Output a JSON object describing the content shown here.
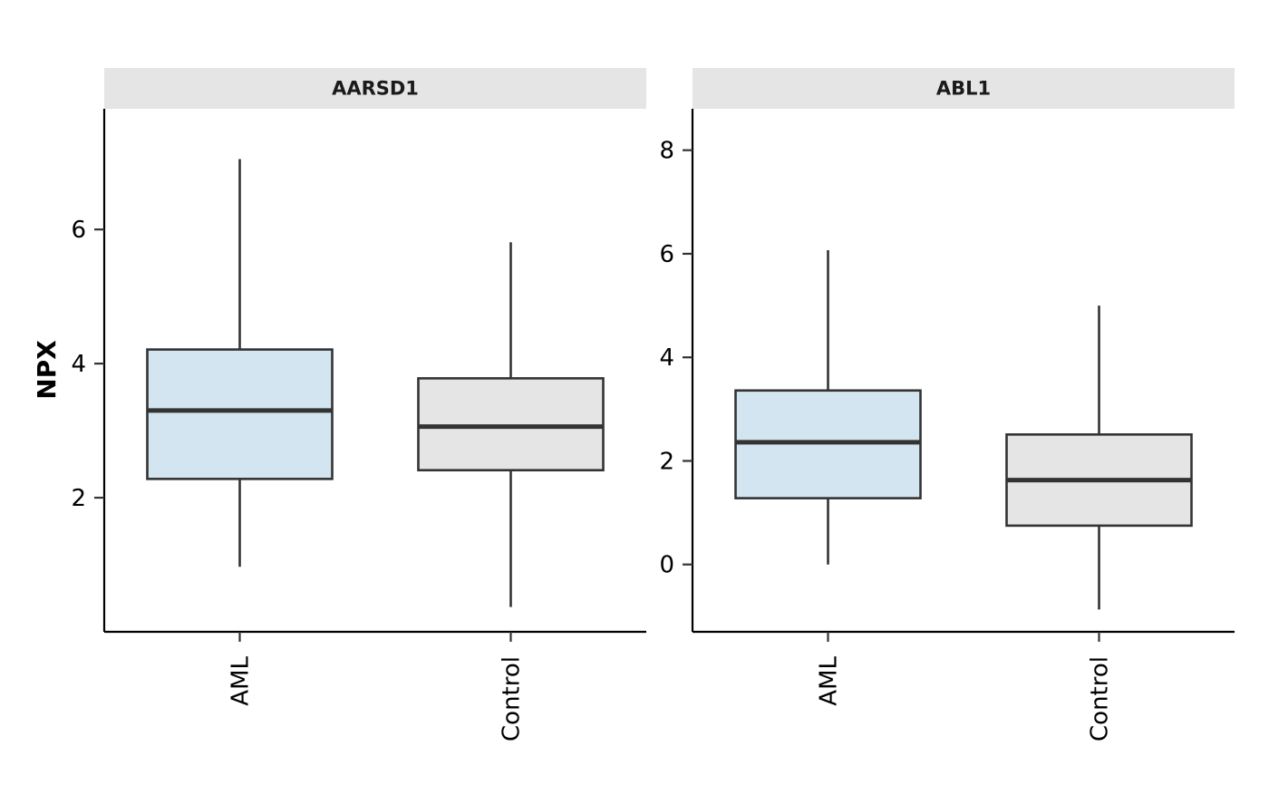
{
  "chart_data": {
    "type": "boxplot",
    "ylabel": "NPX",
    "categories": [
      "AML",
      "Control"
    ],
    "colors": {
      "AML": "#d2e5f0",
      "Control": "#e5e5e5"
    },
    "facets": [
      {
        "title": "AARSD1",
        "ylim": [
          0,
          7.8
        ],
        "yticks": [
          2,
          4,
          6
        ],
        "boxes": [
          {
            "group": "AML",
            "min": 0.97,
            "q1": 2.28,
            "median": 3.3,
            "q3": 4.21,
            "max": 7.05
          },
          {
            "group": "Control",
            "min": 0.37,
            "q1": 2.41,
            "median": 3.06,
            "q3": 3.78,
            "max": 5.81
          }
        ]
      },
      {
        "title": "ABL1",
        "ylim": [
          -1.3,
          8.8
        ],
        "yticks": [
          0,
          2,
          4,
          6,
          8
        ],
        "boxes": [
          {
            "group": "AML",
            "min": 0.0,
            "q1": 1.28,
            "median": 2.36,
            "q3": 3.36,
            "max": 6.07
          },
          {
            "group": "Control",
            "min": -0.87,
            "q1": 0.75,
            "median": 1.63,
            "q3": 2.51,
            "max": 5.0
          }
        ]
      }
    ]
  }
}
